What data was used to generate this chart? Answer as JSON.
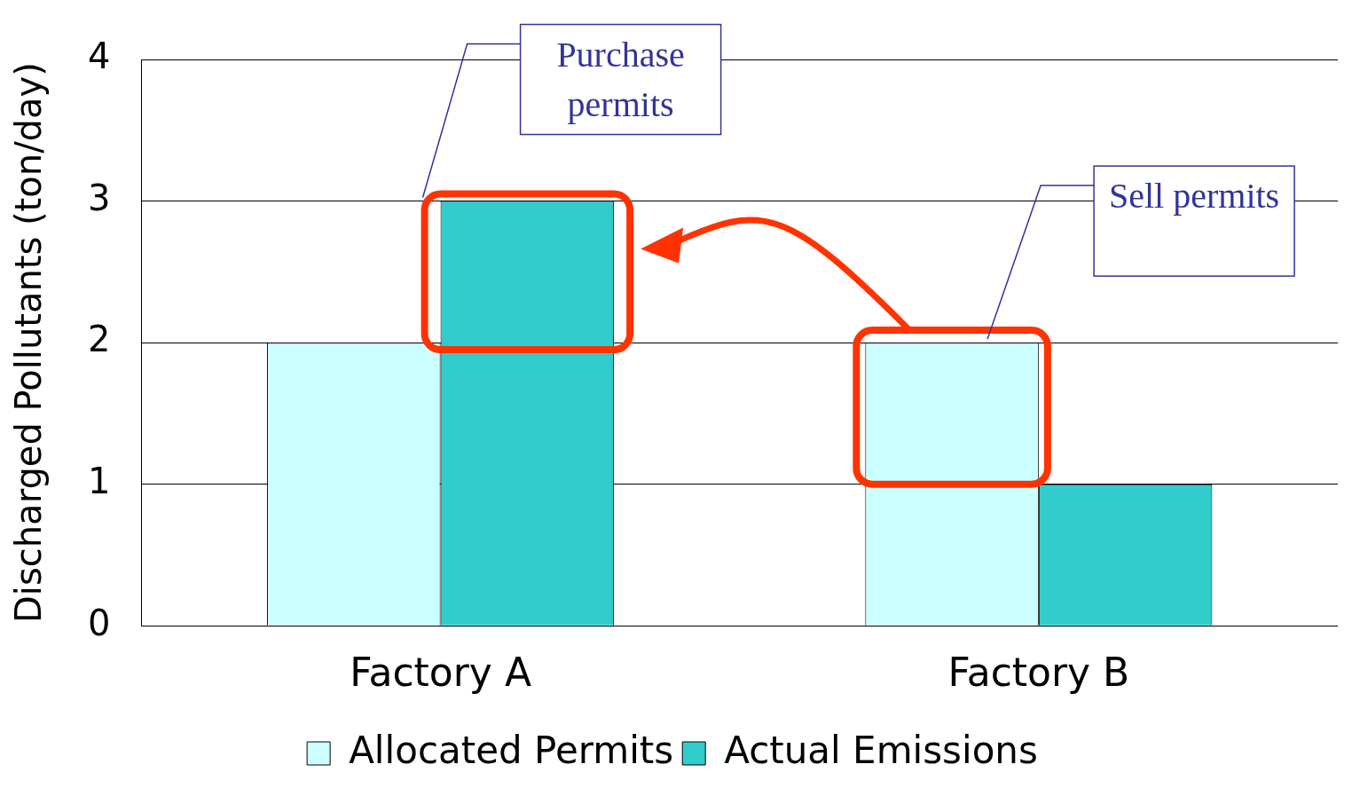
{
  "chart_data": {
    "type": "bar",
    "ylabel": "Discharged Pollutants (ton/day)",
    "categories": [
      "Factory A",
      "Factory B"
    ],
    "series": [
      {
        "name": "Allocated Permits",
        "color": "#ccffff",
        "values": [
          2,
          2
        ]
      },
      {
        "name": "Actual Emissions",
        "color": "#33cccc",
        "values": [
          3,
          1
        ]
      }
    ],
    "ylim": [
      0,
      4
    ],
    "yticks": [
      0,
      1,
      2,
      3,
      4
    ],
    "grid": "y",
    "legend": "bottom",
    "annotations": [
      "Purchase permits",
      "Sell permits"
    ]
  }
}
